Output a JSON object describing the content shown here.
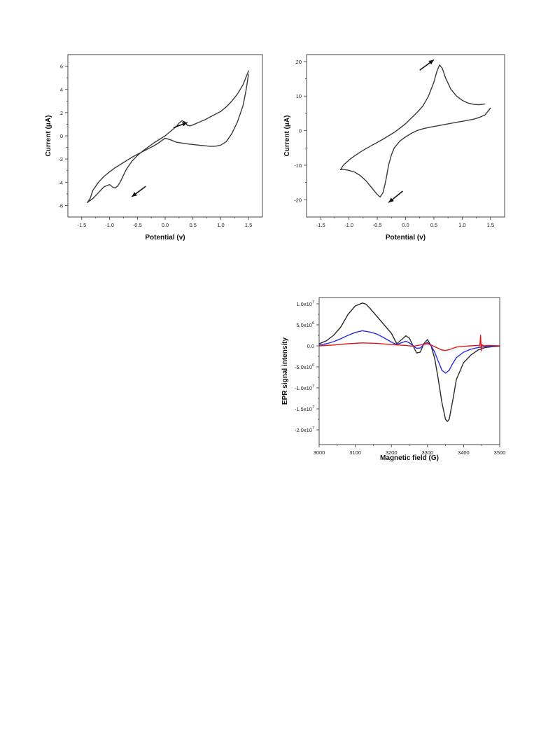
{
  "chart_data": [
    {
      "id": "cv1",
      "type": "line",
      "xlabel": "Potential (v)",
      "ylabel": "Current (μA)",
      "xlim": [
        -1.75,
        1.75
      ],
      "ylim": [
        -7,
        7
      ],
      "xticks": [
        -1.5,
        -1.0,
        -0.5,
        0.0,
        0.5,
        1.0,
        1.5
      ],
      "xtick_labels": [
        "-1.5",
        "-1.0",
        "-0.5",
        "0.0",
        "0.5",
        "1.0",
        "1.5"
      ],
      "yticks": [
        -6,
        -4,
        -2,
        0,
        2,
        4,
        6
      ],
      "ytick_labels": [
        "-6",
        "-4",
        "-2",
        "0",
        "2",
        "4",
        "6"
      ],
      "colors": {
        "trace": "#3a3a3a"
      },
      "series": [
        {
          "x": [
            1.5,
            1.45,
            1.4,
            1.3,
            1.2,
            1.1,
            1.0,
            0.9,
            0.8,
            0.7,
            0.6,
            0.5,
            0.45,
            0.4,
            0.35,
            0.3,
            0.25,
            0.2,
            0.1,
            0.0,
            -0.1,
            -0.2,
            -0.3,
            -0.4,
            -0.5,
            -0.6,
            -0.7,
            -0.75,
            -0.8,
            -0.85,
            -0.9,
            -0.95,
            -1.0,
            -1.1,
            -1.2,
            -1.3,
            -1.4,
            -1.35,
            -1.3,
            -1.2,
            -1.1,
            -1.0,
            -0.9,
            -0.8,
            -0.7,
            -0.6,
            -0.5,
            -0.4,
            -0.3,
            -0.2,
            -0.1,
            0.0,
            0.1,
            0.2,
            0.3,
            0.4,
            0.5,
            0.6,
            0.7,
            0.8,
            0.9,
            1.0,
            1.1,
            1.2,
            1.3,
            1.4,
            1.45,
            1.5
          ],
          "y": [
            5.6,
            5.0,
            4.4,
            3.6,
            3.0,
            2.5,
            2.1,
            1.85,
            1.6,
            1.35,
            1.15,
            0.95,
            0.85,
            0.9,
            1.2,
            1.3,
            1.1,
            0.8,
            0.4,
            0.0,
            -0.3,
            -0.6,
            -0.95,
            -1.3,
            -1.7,
            -2.2,
            -2.9,
            -3.4,
            -3.9,
            -4.3,
            -4.5,
            -4.4,
            -4.2,
            -4.4,
            -4.9,
            -5.4,
            -5.75,
            -5.4,
            -4.7,
            -4.0,
            -3.5,
            -3.1,
            -2.75,
            -2.45,
            -2.15,
            -1.85,
            -1.6,
            -1.35,
            -1.1,
            -0.85,
            -0.55,
            -0.2,
            -0.35,
            -0.55,
            -0.62,
            -0.7,
            -0.75,
            -0.8,
            -0.85,
            -0.9,
            -0.9,
            -0.8,
            -0.5,
            0.2,
            1.2,
            2.6,
            3.8,
            5.3
          ]
        }
      ],
      "arrows": [
        {
          "from": [
            0.15,
            0.7
          ],
          "to": [
            0.4,
            1.15
          ]
        },
        {
          "from": [
            -0.35,
            -4.35
          ],
          "to": [
            -0.6,
            -5.25
          ]
        }
      ]
    },
    {
      "id": "cv2",
      "type": "line",
      "xlabel": "Potential (v)",
      "ylabel": "Current (μA)",
      "xlim": [
        -1.75,
        1.75
      ],
      "ylim": [
        -25,
        22
      ],
      "xticks": [
        -1.5,
        -1.0,
        -0.5,
        0.0,
        0.5,
        1.0,
        1.5
      ],
      "xtick_labels": [
        "-1.5",
        "-1.0",
        "-0.5",
        "0.0",
        "0.5",
        "1.0",
        "1.5"
      ],
      "yticks": [
        -20,
        -10,
        0,
        10,
        20
      ],
      "ytick_labels": [
        "-20",
        "-10",
        "0",
        "10",
        "20"
      ],
      "colors": {
        "trace": "#3a3a3a"
      },
      "series": [
        {
          "x": [
            1.5,
            1.4,
            1.3,
            1.2,
            1.1,
            1.0,
            0.9,
            0.8,
            0.7,
            0.6,
            0.5,
            0.4,
            0.3,
            0.2,
            0.1,
            0.0,
            -0.1,
            -0.2,
            -0.25,
            -0.3,
            -0.35,
            -0.4,
            -0.45,
            -0.5,
            -0.6,
            -0.7,
            -0.8,
            -0.9,
            -1.0,
            -1.1,
            -1.15,
            -1.1,
            -1.0,
            -0.9,
            -0.8,
            -0.7,
            -0.6,
            -0.5,
            -0.4,
            -0.3,
            -0.2,
            -0.1,
            0.0,
            0.1,
            0.2,
            0.3,
            0.4,
            0.5,
            0.55,
            0.6,
            0.65,
            0.7,
            0.8,
            0.9,
            1.0,
            1.1,
            1.2,
            1.3,
            1.4
          ],
          "y": [
            6.5,
            4.5,
            3.8,
            3.3,
            3.0,
            2.7,
            2.4,
            2.1,
            1.8,
            1.5,
            1.2,
            0.9,
            0.5,
            0.0,
            -0.8,
            -1.8,
            -3.0,
            -5.0,
            -7.0,
            -10.0,
            -14.5,
            -18.0,
            -19.2,
            -18.5,
            -16.5,
            -14.5,
            -13.0,
            -12.0,
            -11.5,
            -11.2,
            -11.3,
            -10.0,
            -8.5,
            -7.3,
            -6.2,
            -5.2,
            -4.3,
            -3.4,
            -2.5,
            -1.5,
            -0.5,
            0.7,
            2.0,
            3.6,
            5.2,
            7.0,
            9.8,
            14.0,
            17.0,
            19.0,
            18.0,
            15.5,
            12.0,
            10.0,
            8.8,
            8.0,
            7.6,
            7.5,
            7.7
          ]
        }
      ],
      "arrows": [
        {
          "from": [
            0.25,
            17.5
          ],
          "to": [
            0.5,
            20.5
          ]
        },
        {
          "from": [
            -0.05,
            -17.5
          ],
          "to": [
            -0.3,
            -20.8
          ]
        }
      ]
    },
    {
      "id": "epr",
      "type": "line",
      "xlabel": "Magnetic field (G)",
      "ylabel": "EPR signal intensity",
      "xlim": [
        3000,
        3500
      ],
      "ylim": [
        -23500000.0,
        11500000.0
      ],
      "xticks": [
        3000,
        3100,
        3200,
        3300,
        3400,
        3500
      ],
      "xtick_labels": [
        "3000",
        "3100",
        "3200",
        "3300",
        "3400",
        "3500"
      ],
      "yticks": [
        10000000,
        5000000,
        0,
        -5000000,
        -10000000,
        -15000000,
        -20000000
      ],
      "ytick_labels": [
        {
          "base": "1.0x10",
          "exp": "7"
        },
        {
          "base": "5.0x10",
          "exp": "6"
        },
        {
          "base": "0.0",
          "exp": ""
        },
        {
          "base": "-5.0x10",
          "exp": "6"
        },
        {
          "base": "-1.0x10",
          "exp": "7"
        },
        {
          "base": "-1.5x10",
          "exp": "7"
        },
        {
          "base": "-2.0x10",
          "exp": "7"
        }
      ],
      "colors": {
        "xlabel": "#1f3fe0",
        "ylabel": "#1f3fe0",
        "black": "#2b2b2b",
        "blue": "#2b2bd9",
        "red": "#e01818"
      },
      "series": [
        {
          "color": "black",
          "x": [
            3000,
            3020,
            3040,
            3060,
            3080,
            3100,
            3120,
            3130,
            3140,
            3160,
            3180,
            3200,
            3215,
            3230,
            3240,
            3250,
            3260,
            3270,
            3280,
            3290,
            3300,
            3310,
            3320,
            3330,
            3340,
            3350,
            3355,
            3360,
            3370,
            3380,
            3400,
            3420,
            3440,
            3460,
            3480,
            3500
          ],
          "y": [
            500000,
            1200000,
            2500000,
            4500000,
            7500000,
            9500000,
            10200000,
            9900000,
            9000000,
            7000000,
            5000000,
            3000000,
            500000,
            1600000,
            2400000,
            1800000,
            0,
            -1700000,
            -1500000,
            500000,
            1500000,
            0,
            -3000000,
            -8000000,
            -13500000,
            -17500000,
            -18000000,
            -17500000,
            -13000000,
            -8000000,
            -4000000,
            -2200000,
            -1000000,
            -400000,
            -200000,
            -100000
          ]
        },
        {
          "color": "blue",
          "x": [
            3000,
            3020,
            3040,
            3060,
            3080,
            3100,
            3120,
            3140,
            3160,
            3180,
            3200,
            3215,
            3230,
            3240,
            3250,
            3260,
            3270,
            3280,
            3290,
            3300,
            3310,
            3320,
            3330,
            3340,
            3350,
            3360,
            3370,
            3380,
            3400,
            3420,
            3440,
            3460,
            3480,
            3500
          ],
          "y": [
            200000,
            500000,
            1000000,
            1700000,
            2500000,
            3200000,
            3600000,
            3300000,
            2800000,
            1900000,
            900000,
            300000,
            800000,
            1100000,
            700000,
            0,
            -600000,
            -500000,
            300000,
            800000,
            0,
            -1500000,
            -3700000,
            -5800000,
            -6500000,
            -5800000,
            -4200000,
            -2800000,
            -1500000,
            -800000,
            -400000,
            -200000,
            -100000,
            0
          ]
        },
        {
          "color": "red",
          "x": [
            3000,
            3040,
            3080,
            3120,
            3160,
            3200,
            3240,
            3260,
            3280,
            3300,
            3310,
            3320,
            3330,
            3340,
            3350,
            3360,
            3370,
            3380,
            3400,
            3420,
            3440,
            3445,
            3447,
            3449,
            3451,
            3455,
            3470,
            3500
          ],
          "y": [
            0,
            200000,
            500000,
            700000,
            600000,
            300000,
            100000,
            -100000,
            200000,
            500000,
            200000,
            -200000,
            -600000,
            -1000000,
            -1100000,
            -900000,
            -600000,
            -300000,
            -100000,
            0,
            100000,
            0,
            2500000,
            -1200000,
            300000,
            0,
            100000,
            0
          ]
        }
      ]
    }
  ]
}
